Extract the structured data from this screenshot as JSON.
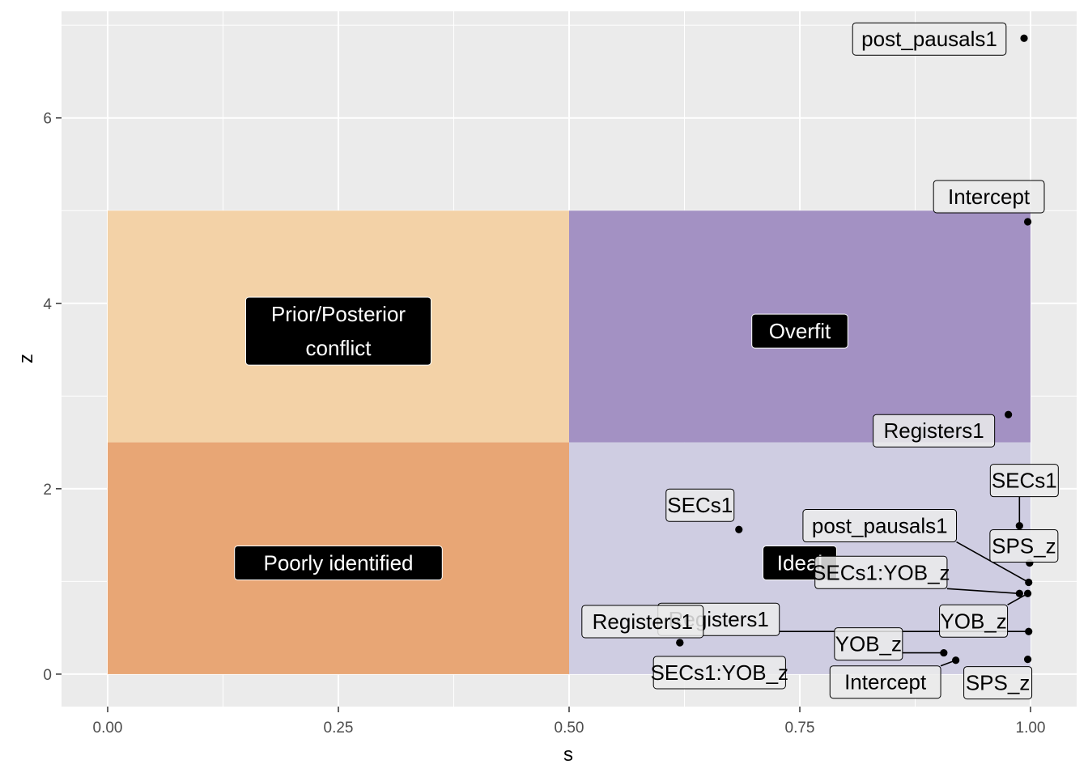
{
  "chart_data": {
    "type": "scatter",
    "xlabel": "s",
    "ylabel": "z",
    "xlim": [
      -0.05,
      1.05
    ],
    "ylim": [
      -0.35,
      7.15
    ],
    "x_ticks": [
      {
        "value": 0.0,
        "label": "0.00"
      },
      {
        "value": 0.25,
        "label": "0.25"
      },
      {
        "value": 0.5,
        "label": "0.50"
      },
      {
        "value": 0.75,
        "label": "0.75"
      },
      {
        "value": 1.0,
        "label": "1.00"
      }
    ],
    "y_ticks": [
      {
        "value": 0,
        "label": "0"
      },
      {
        "value": 2,
        "label": "2"
      },
      {
        "value": 4,
        "label": "4"
      },
      {
        "value": 6,
        "label": "6"
      }
    ],
    "grid": true,
    "background": "#ebebeb",
    "regions": [
      {
        "label": "Prior/Posterior\nconflict",
        "x": [
          0,
          0.5
        ],
        "y": [
          2.5,
          5
        ],
        "color": "#f3d2a7"
      },
      {
        "label": "Overfit",
        "x": [
          0.5,
          1
        ],
        "y": [
          2.5,
          5
        ],
        "color": "#a391c3"
      },
      {
        "label": "Poorly identified",
        "x": [
          0,
          0.5
        ],
        "y": [
          0,
          2.5
        ],
        "color": "#e8a675"
      },
      {
        "label": "Ideal",
        "x": [
          0.5,
          1
        ],
        "y": [
          0,
          2.5
        ],
        "color": "#cfcde2"
      }
    ],
    "points": [
      {
        "label": "post_pausals1",
        "x": 0.993,
        "y": 6.86
      },
      {
        "label": "Intercept",
        "x": 0.997,
        "y": 4.88
      },
      {
        "label": "Registers1",
        "x": 0.976,
        "y": 2.8
      },
      {
        "label": "SECs1",
        "x": 0.988,
        "y": 1.6
      },
      {
        "label": "SECs1",
        "x": 0.684,
        "y": 1.56
      },
      {
        "label": "SPS_z",
        "x": 0.999,
        "y": 1.2
      },
      {
        "label": "post_pausals1",
        "x": 0.998,
        "y": 0.99
      },
      {
        "label": "SECs1:YOB_z",
        "x": 0.988,
        "y": 0.87
      },
      {
        "label": "YOB_z",
        "x": 0.997,
        "y": 0.87
      },
      {
        "label": "Registers1",
        "x": 0.998,
        "y": 0.46
      },
      {
        "label": "Registers1",
        "x": 0.62,
        "y": 0.34
      },
      {
        "label": "YOB_z",
        "x": 0.906,
        "y": 0.23
      },
      {
        "label": "Intercept",
        "x": 0.919,
        "y": 0.15
      },
      {
        "label": "SPS_z",
        "x": 0.997,
        "y": 0.16
      },
      {
        "label": "SECs1:YOB_z",
        "x": 0.62,
        "y": 0.34
      }
    ],
    "point_color": "#000000"
  }
}
